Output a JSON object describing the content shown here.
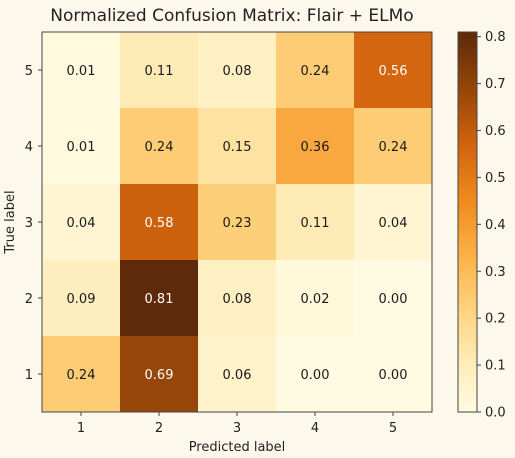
{
  "chart_data": {
    "type": "heatmap",
    "title": "Normalized Confusion Matrix: Flair + ELMo",
    "xlabel": "Predicted label",
    "ylabel": "True label",
    "x_categories": [
      "1",
      "2",
      "3",
      "4",
      "5"
    ],
    "y_categories": [
      "5",
      "4",
      "3",
      "2",
      "1"
    ],
    "values": [
      [
        0.01,
        0.11,
        0.08,
        0.24,
        0.56
      ],
      [
        0.01,
        0.24,
        0.15,
        0.36,
        0.24
      ],
      [
        0.04,
        0.58,
        0.23,
        0.11,
        0.04
      ],
      [
        0.09,
        0.81,
        0.08,
        0.02,
        0.0
      ],
      [
        0.24,
        0.69,
        0.06,
        0.0,
        0.0
      ]
    ],
    "value_labels": [
      [
        "0.01",
        "0.11",
        "0.08",
        "0.24",
        "0.56"
      ],
      [
        "0.01",
        "0.24",
        "0.15",
        "0.36",
        "0.24"
      ],
      [
        "0.04",
        "0.58",
        "0.23",
        "0.11",
        "0.04"
      ],
      [
        "0.09",
        "0.81",
        "0.08",
        "0.02",
        "0.00"
      ],
      [
        "0.24",
        "0.69",
        "0.06",
        "0.00",
        "0.00"
      ]
    ],
    "colormap": "YlOrBr-like (cream to dark brown)",
    "color_range": [
      0.0,
      0.81
    ],
    "colorbar_ticks": [
      "0.0",
      "0.1",
      "0.2",
      "0.3",
      "0.4",
      "0.5",
      "0.6",
      "0.7",
      "0.8"
    ],
    "colorbar_tick_values": [
      0.0,
      0.1,
      0.2,
      0.3,
      0.4,
      0.5,
      0.6,
      0.7,
      0.8
    ],
    "text_color_dark": "#1a1a1a",
    "text_color_light": "#ffffff",
    "background_color": "#fdf8ec"
  }
}
